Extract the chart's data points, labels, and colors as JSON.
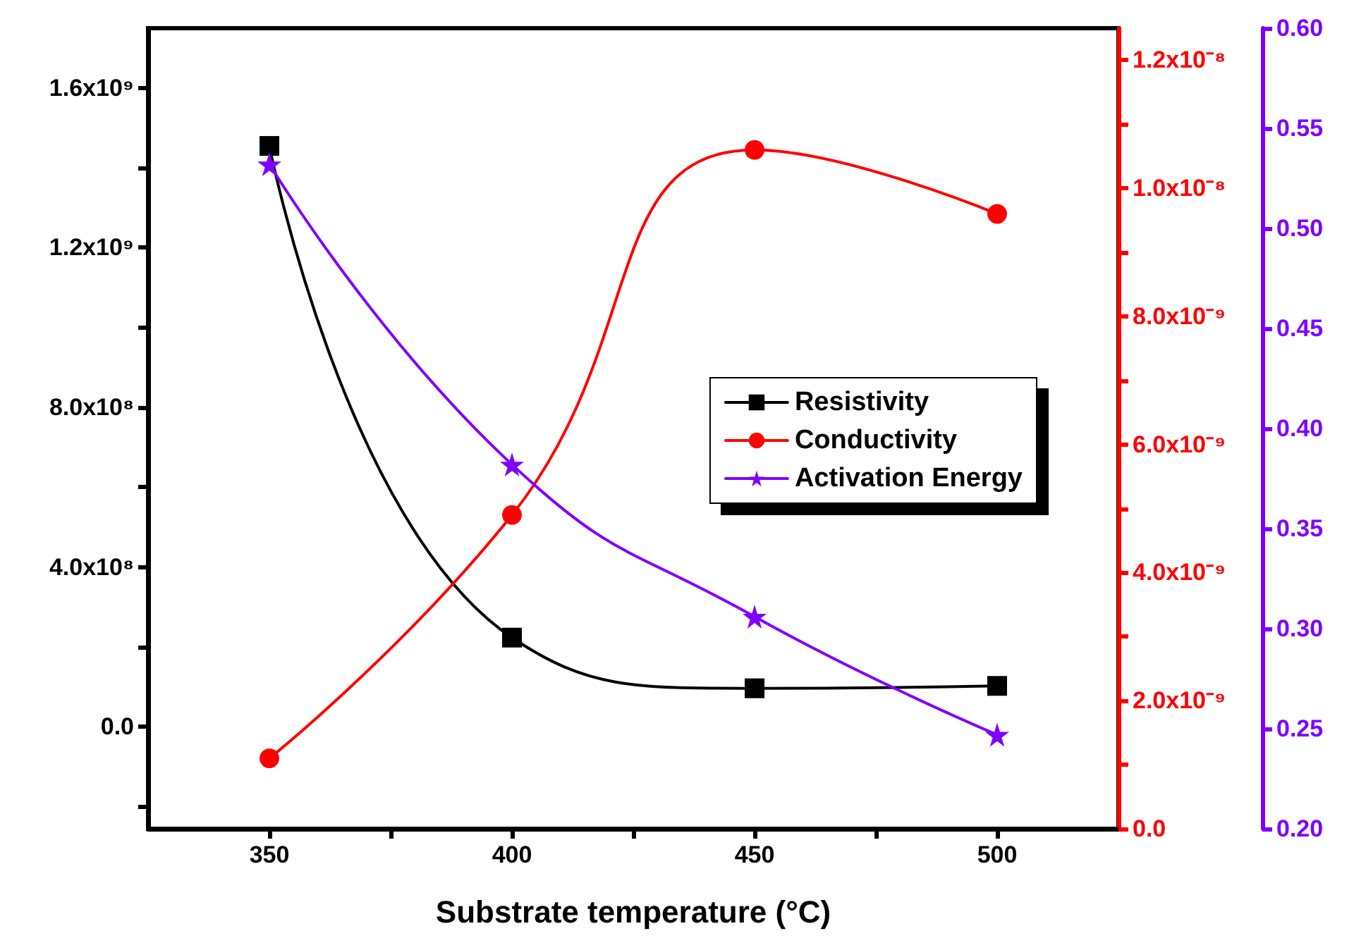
{
  "chart_data": {
    "type": "line",
    "xlabel": "Substrate temperature (°C)",
    "x": [
      350,
      400,
      450,
      500
    ],
    "xlim": [
      325,
      525
    ],
    "xticks": [
      350,
      {
        "value": 375,
        "label": null
      },
      400,
      {
        "value": 425,
        "label": null
      },
      450,
      {
        "value": 475,
        "label": null
      },
      500
    ],
    "ylim": [
      -256000000,
      1750000000
    ],
    "yticks": [
      {
        "value": -200000000,
        "label": null
      },
      {
        "value": 0,
        "label": "0.0"
      },
      {
        "value": 200000000,
        "label": null
      },
      {
        "value": 400000000,
        "label": "4.0x10⁸"
      },
      {
        "value": 600000000,
        "label": null
      },
      {
        "value": 800000000,
        "label": "8.0x10⁸"
      },
      {
        "value": 1000000000,
        "label": null
      },
      {
        "value": 1200000000,
        "label": "1.2x10⁹"
      },
      {
        "value": 1400000000,
        "label": null
      },
      {
        "value": 1600000000,
        "label": "1.6x10⁹"
      }
    ],
    "y2lim": [
      0,
      1.25e-08
    ],
    "y2ticks": [
      {
        "value": 0,
        "label": "0.0"
      },
      {
        "value": 1e-09,
        "label": null
      },
      {
        "value": 2e-09,
        "label": "2.0x10⁻⁹"
      },
      {
        "value": 3e-09,
        "label": null
      },
      {
        "value": 4e-09,
        "label": "4.0x10⁻⁹"
      },
      {
        "value": 5e-09,
        "label": null
      },
      {
        "value": 6e-09,
        "label": "6.0x10⁻⁹"
      },
      {
        "value": 7e-09,
        "label": null
      },
      {
        "value": 8e-09,
        "label": "8.0x10⁻⁹"
      },
      {
        "value": 9e-09,
        "label": null
      },
      {
        "value": 1e-08,
        "label": "1.0x10⁻⁸"
      },
      {
        "value": 1.1e-08,
        "label": null
      },
      {
        "value": 1.2e-08,
        "label": "1.2x10⁻⁸"
      }
    ],
    "y3lim": [
      0.2,
      0.6
    ],
    "y3ticks": [
      {
        "value": 0.2,
        "label": "0.20"
      },
      {
        "value": 0.25,
        "label": "0.25"
      },
      {
        "value": 0.3,
        "label": "0.30"
      },
      {
        "value": 0.35,
        "label": "0.35"
      },
      {
        "value": 0.4,
        "label": "0.40"
      },
      {
        "value": 0.45,
        "label": "0.45"
      },
      {
        "value": 0.5,
        "label": "0.50"
      },
      {
        "value": 0.55,
        "label": "0.55"
      },
      {
        "value": 0.6,
        "label": "0.60"
      }
    ],
    "legend": "right",
    "grid": false,
    "line_style": "solid",
    "series": [
      {
        "name": "Resistivity",
        "color": "#000000",
        "marker": "square",
        "values": [
          1455000000,
          223000000,
          96000000,
          102000000
        ]
      },
      {
        "name": "Conductivity",
        "color": "#ff0000",
        "marker": "circle",
        "axis": "y2",
        "values": [
          1.1e-09,
          4.9e-09,
          1.06e-08,
          9.6e-09
        ]
      },
      {
        "name": "Activation Energy",
        "color": "#7f00ff",
        "marker": "star",
        "axis": "y3",
        "values": [
          0.532,
          0.382,
          0.306,
          0.247
        ]
      }
    ]
  }
}
